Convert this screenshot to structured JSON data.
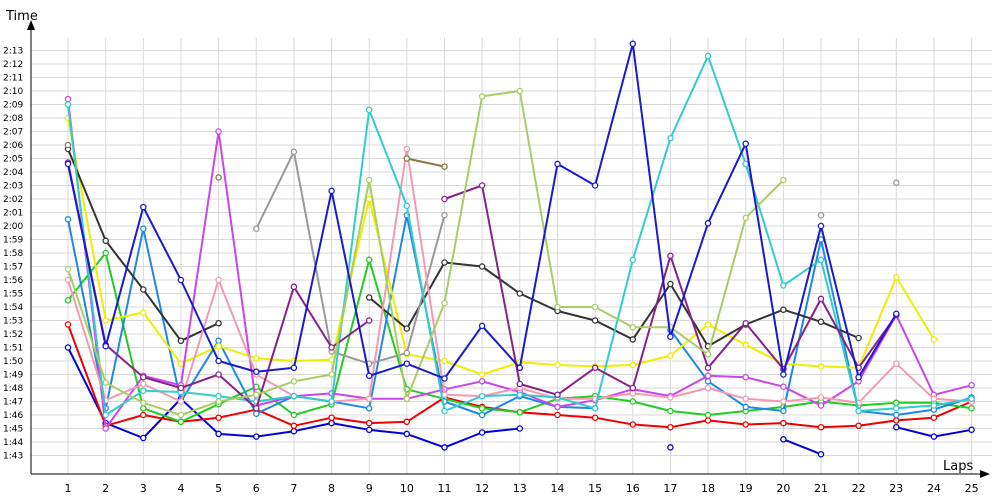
{
  "chart_data": {
    "type": "line",
    "xlabel": "Laps",
    "ylabel": "Time",
    "x": [
      1,
      2,
      3,
      4,
      5,
      6,
      7,
      8,
      9,
      10,
      11,
      12,
      13,
      14,
      15,
      16,
      17,
      18,
      19,
      20,
      21,
      22,
      23,
      24,
      25
    ],
    "ylim": [
      102,
      134
    ],
    "yticks": [
      "1:43",
      "1:44",
      "1:45",
      "1:46",
      "1:47",
      "1:48",
      "1:49",
      "1:50",
      "1:51",
      "1:52",
      "1:53",
      "1:54",
      "1:55",
      "1:56",
      "1:57",
      "1:58",
      "1:59",
      "2:00",
      "2:01",
      "2:02",
      "2:03",
      "2:04",
      "2:05",
      "2:06",
      "2:07",
      "2:08",
      "2:09",
      "2:10",
      "2:11",
      "2:12",
      "2:13"
    ],
    "grid": true,
    "series": [
      {
        "color": "#0000dd",
        "values": [
          111,
          105.4,
          104.3,
          107.2,
          104.6,
          104.4,
          104.8,
          105.4,
          104.9,
          104.6,
          103.6,
          104.7,
          105.0,
          null,
          null,
          null,
          103.6,
          null,
          null,
          104.2,
          103.1,
          null,
          105.1,
          104.4,
          104.9
        ]
      },
      {
        "color": "#ee0000",
        "values": [
          112.7,
          105.2,
          106.0,
          105.5,
          105.8,
          106.4,
          105.2,
          105.8,
          105.4,
          105.5,
          107.3,
          106.6,
          106.2,
          106.0,
          105.8,
          105.3,
          105.1,
          105.6,
          105.3,
          105.4,
          105.1,
          105.2,
          105.6,
          105.8,
          107.0
        ]
      },
      {
        "color": "#22cc22",
        "values": [
          114.5,
          118.0,
          106.5,
          105.5,
          106.8,
          108.1,
          106.0,
          106.8,
          117.5,
          107.9,
          107.2,
          106.5,
          106.2,
          107.2,
          107.4,
          107.0,
          106.3,
          106.0,
          106.3,
          106.6,
          107.0,
          106.7,
          106.9,
          106.9,
          106.5
        ]
      },
      {
        "color": "#1e88e5",
        "values": [
          120.5,
          106.5,
          119.8,
          107.0,
          111.5,
          106.1,
          107.4,
          107.0,
          106.5,
          120.8,
          107.0,
          106.0,
          107.4,
          106.6,
          106.5,
          null,
          112.3,
          108.5,
          106.6,
          106.3,
          119.0,
          106.3,
          106.0,
          106.4,
          107.3
        ]
      },
      {
        "color": "#eeee00",
        "values": [
          128.0,
          113.0,
          113.6,
          109.8,
          111.1,
          110.2,
          110.0,
          110.1,
          122.0,
          110.5,
          110.0,
          109.0,
          109.9,
          109.7,
          109.6,
          109.7,
          110.4,
          112.7,
          111.2,
          109.8,
          109.6,
          109.5,
          116.2,
          111.6,
          null
        ]
      },
      {
        "color": "#333333",
        "values": [
          125.7,
          118.9,
          115.3,
          111.5,
          112.8,
          null,
          null,
          null,
          114.7,
          112.4,
          117.3,
          117.0,
          115.0,
          113.7,
          113.0,
          111.6,
          115.7,
          111.1,
          112.7,
          113.8,
          112.9,
          111.7,
          null,
          null,
          null
        ]
      },
      {
        "color": "#999999",
        "values": [
          null,
          null,
          null,
          null,
          null,
          119.8,
          125.5,
          110.7,
          109.8,
          110.6,
          120.8,
          null,
          null,
          null,
          null,
          null,
          null,
          null,
          null,
          null,
          120.8,
          null,
          123.2,
          null,
          null
        ]
      },
      {
        "color": "#cc44ee",
        "values": [
          129.4,
          105.0,
          108.9,
          108.2,
          127.0,
          106.7,
          107.4,
          107.6,
          107.2,
          107.2,
          107.9,
          108.5,
          107.7,
          106.6,
          107.1,
          107.9,
          107.4,
          108.9,
          108.8,
          108.1,
          106.7,
          108.5,
          113.4,
          107.5,
          108.2
        ]
      },
      {
        "color": "#f49ab0",
        "values": [
          116.0,
          107.1,
          108.3,
          107.0,
          116.0,
          109.0,
          107.4,
          107.0,
          107.2,
          125.7,
          107.5,
          107.4,
          108.0,
          107.2,
          107.2,
          107.6,
          107.3,
          108.0,
          107.2,
          107.0,
          107.3,
          106.9,
          109.8,
          107.2,
          107.0
        ]
      },
      {
        "color": "#33cccc",
        "values": [
          129.0,
          106.0,
          107.8,
          107.7,
          107.4,
          107.0,
          107.4,
          107.0,
          128.6,
          121.5,
          106.3,
          107.4,
          107.5,
          107.3,
          106.5,
          117.5,
          126.5,
          132.6,
          124.6,
          115.6,
          117.5,
          106.3,
          106.5,
          106.7,
          107.2
        ]
      },
      {
        "color": "#882288",
        "values": [
          124.7,
          111.2,
          108.8,
          108.0,
          109.0,
          106.5,
          115.5,
          111.0,
          113.0,
          null,
          122.0,
          123.0,
          108.3,
          107.5,
          109.5,
          108.0,
          117.8,
          109.5,
          112.8,
          109.4,
          114.6,
          109.5,
          113.4,
          null,
          null
        ]
      },
      {
        "color": "#aacc66",
        "values": [
          116.8,
          108.4,
          106.9,
          106.0,
          107.0,
          107.5,
          108.5,
          109.0,
          123.4,
          107.2,
          114.3,
          129.6,
          130.0,
          114.0,
          114.0,
          112.5,
          112.5,
          110.5,
          120.6,
          123.4,
          null,
          null,
          null,
          null,
          null
        ]
      },
      {
        "color": "#1a1acc",
        "values": [
          124.6,
          111.1,
          121.4,
          116.0,
          110.0,
          109.2,
          109.5,
          122.6,
          108.9,
          109.8,
          108.7,
          112.6,
          109.5,
          124.6,
          123.0,
          133.5,
          111.8,
          120.2,
          126.1,
          109.0,
          120.0,
          108.8,
          113.5,
          null,
          null
        ]
      },
      {
        "color": "#887744",
        "values": [
          126.0,
          null,
          null,
          null,
          123.6,
          null,
          null,
          null,
          null,
          125.0,
          124.4,
          null,
          null,
          null,
          null,
          null,
          null,
          null,
          null,
          null,
          null,
          null,
          null,
          null,
          null
        ]
      }
    ]
  }
}
